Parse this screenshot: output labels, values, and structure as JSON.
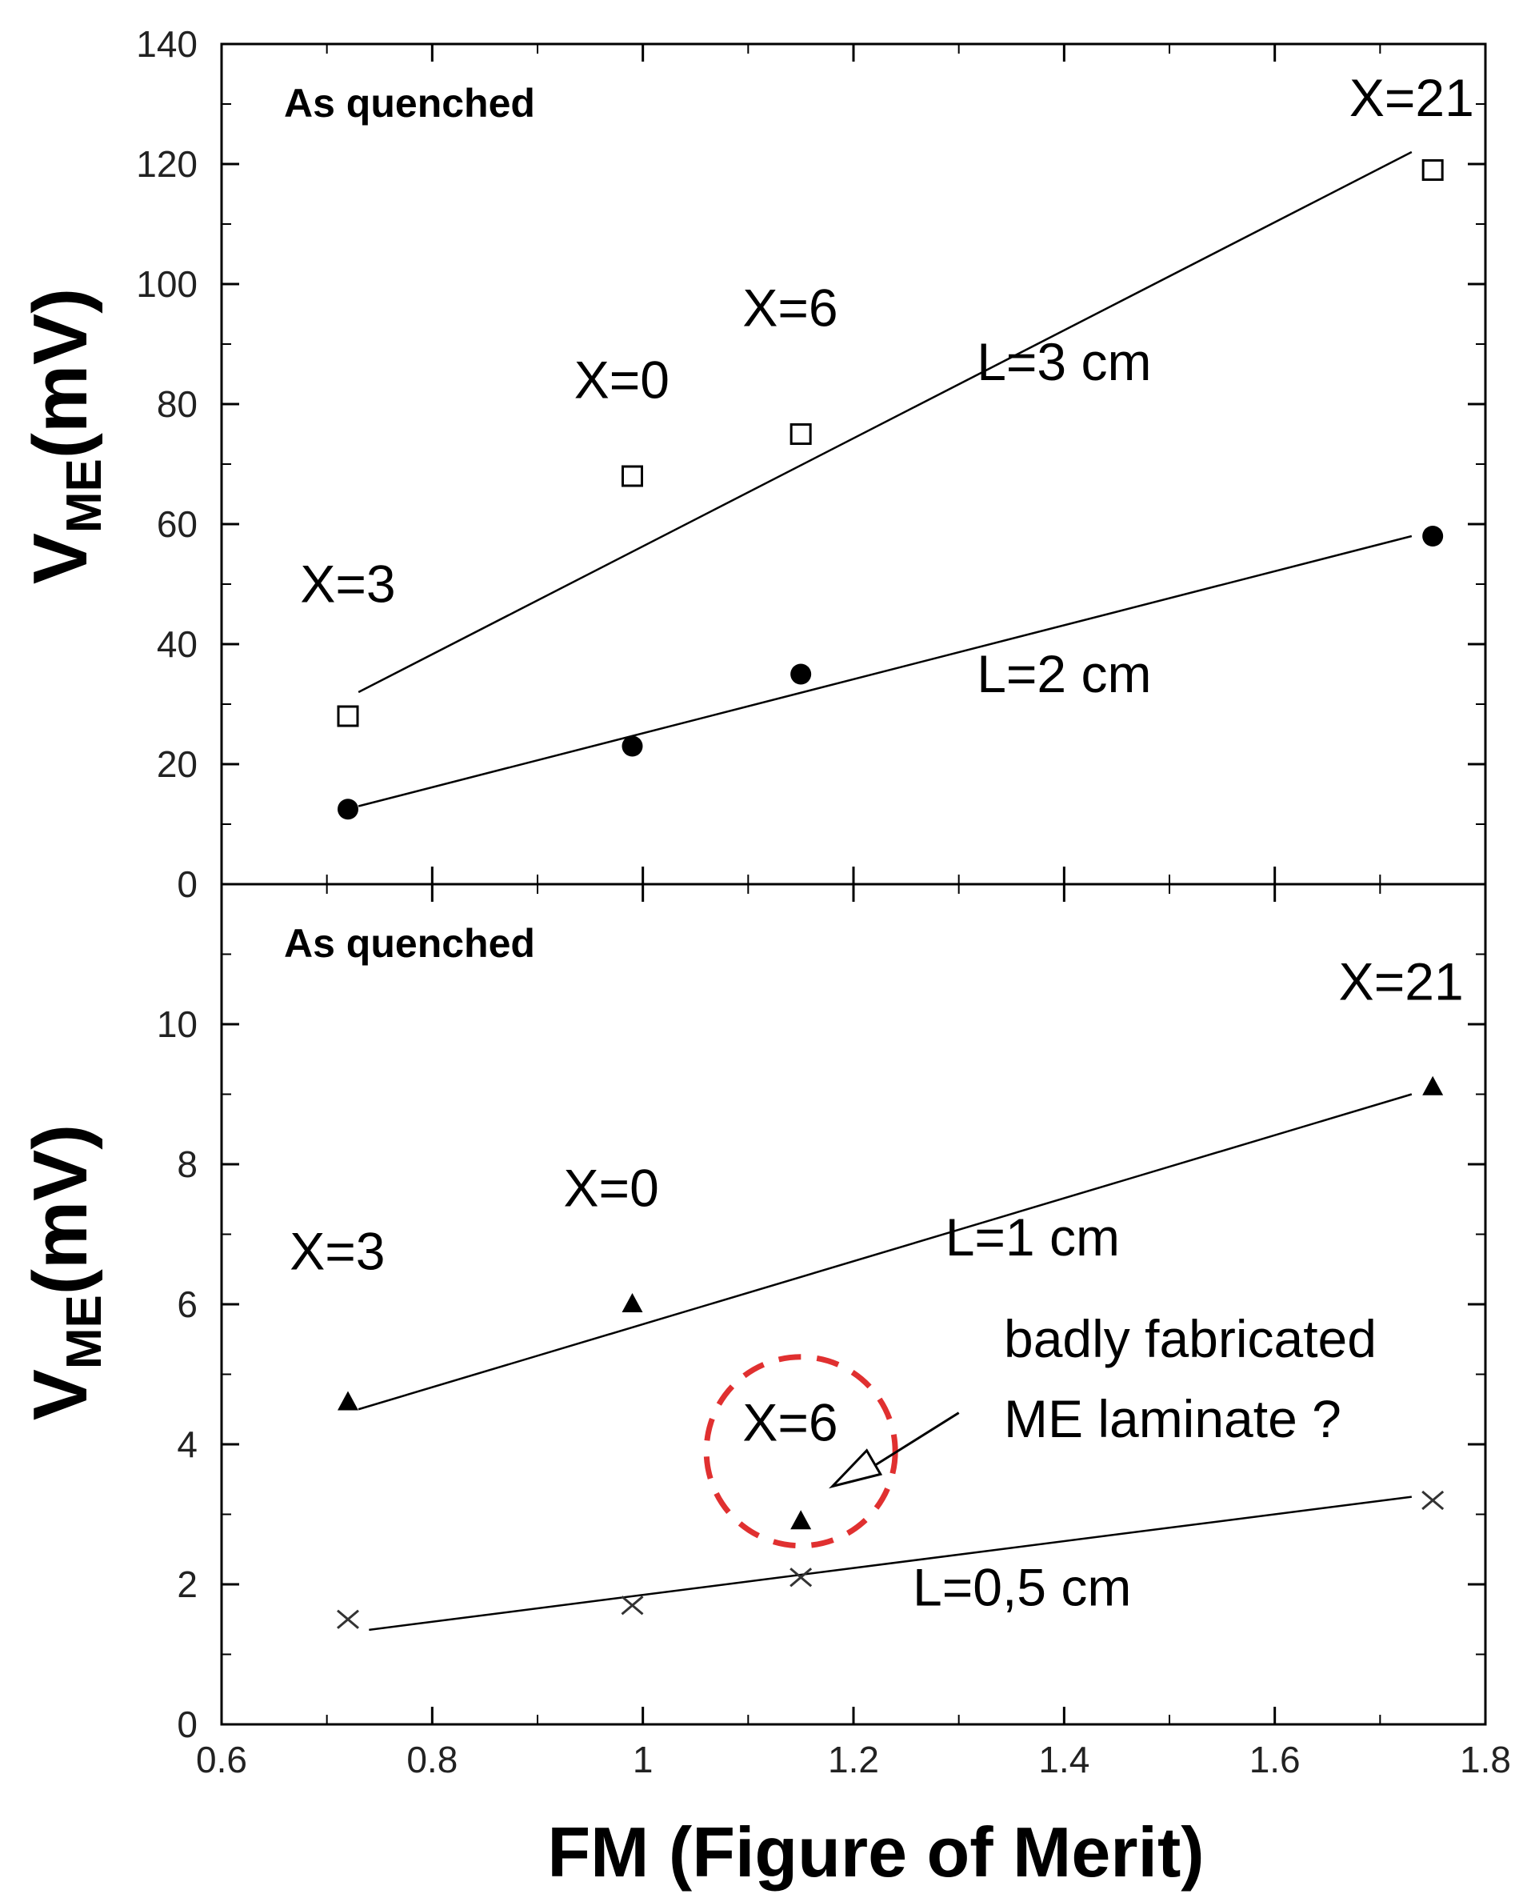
{
  "chart_data": {
    "type": "scatter",
    "xlabel": "FM (Figure of Merit)",
    "x_ticks": [
      "0.6",
      "0.8",
      "1",
      "1.2",
      "1.4",
      "1.6",
      "1.8"
    ],
    "xlim": [
      0.6,
      1.8
    ],
    "panels": [
      {
        "name": "top",
        "note": "As quenched",
        "ylabel_main": "V",
        "ylabel_sub": "ME",
        "ylabel_unit": "(mV)",
        "ylim": [
          0,
          140
        ],
        "y_ticks": [
          "0",
          "20",
          "40",
          "60",
          "80",
          "100",
          "120",
          "140"
        ],
        "series": [
          {
            "name": "L=3 cm",
            "marker": "open-square",
            "x": [
              0.72,
              0.99,
              1.15,
              1.75
            ],
            "y": [
              28,
              68,
              75,
              119
            ],
            "fit": {
              "x": [
                0.73,
                1.73
              ],
              "y": [
                32,
                122
              ]
            }
          },
          {
            "name": "L=2 cm",
            "marker": "filled-circle",
            "x": [
              0.72,
              0.99,
              1.15,
              1.75
            ],
            "y": [
              12.5,
              23,
              35,
              58
            ],
            "fit": {
              "x": [
                0.73,
                1.73
              ],
              "y": [
                13,
                58
              ]
            }
          }
        ],
        "annotations": [
          {
            "id": "x3",
            "text": "X=3",
            "x": 0.72,
            "y": 47
          },
          {
            "id": "x0",
            "text": "X=0",
            "x": 0.98,
            "y": 81
          },
          {
            "id": "x6",
            "text": "X=6",
            "x": 1.14,
            "y": 93
          },
          {
            "id": "x21",
            "text": "X=21",
            "x": 1.73,
            "y": 128
          },
          {
            "id": "l3",
            "text": "L=3 cm",
            "x": 1.4,
            "y": 84
          },
          {
            "id": "l2",
            "text": "L=2 cm",
            "x": 1.4,
            "y": 32
          }
        ]
      },
      {
        "name": "bottom",
        "note": "As quenched",
        "ylabel_main": "V",
        "ylabel_sub": "ME",
        "ylabel_unit": "(mV)",
        "ylim": [
          0,
          12
        ],
        "y_ticks": [
          "0",
          "2",
          "4",
          "6",
          "8",
          "10"
        ],
        "series": [
          {
            "name": "L=1 cm",
            "marker": "filled-triangle",
            "x": [
              0.72,
              0.99,
              1.15,
              1.75
            ],
            "y": [
              4.6,
              6.0,
              2.9,
              9.1
            ],
            "fit": {
              "x": [
                0.73,
                1.73
              ],
              "y": [
                4.5,
                9.0
              ]
            }
          },
          {
            "name": "L=0,5 cm",
            "marker": "cross",
            "x": [
              0.72,
              0.99,
              1.15,
              1.75
            ],
            "y": [
              1.5,
              1.7,
              2.1,
              3.2
            ],
            "fit": {
              "x": [
                0.74,
                1.73
              ],
              "y": [
                1.35,
                3.25
              ]
            }
          }
        ],
        "annotations": [
          {
            "id": "x3",
            "text": "X=3",
            "x": 0.71,
            "y": 6.5
          },
          {
            "id": "x0",
            "text": "X=0",
            "x": 0.97,
            "y": 7.4
          },
          {
            "id": "x6",
            "text": "X=6",
            "x": 1.14,
            "y": 4.05
          },
          {
            "id": "x21",
            "text": "X=21",
            "x": 1.72,
            "y": 10.35
          },
          {
            "id": "l1",
            "text": "L=1 cm",
            "x": 1.37,
            "y": 6.7
          },
          {
            "id": "l05",
            "text": "L=0,5 cm",
            "x": 1.36,
            "y": 1.7
          }
        ],
        "callout": {
          "lines": [
            "badly fabricated",
            "ME laminate ?"
          ],
          "circle_center": {
            "x": 1.15,
            "y": 3.9
          },
          "arrow_from": {
            "x": 1.3,
            "y": 4.45
          },
          "arrow_to": {
            "x": 1.18,
            "y": 3.4
          }
        }
      }
    ]
  }
}
